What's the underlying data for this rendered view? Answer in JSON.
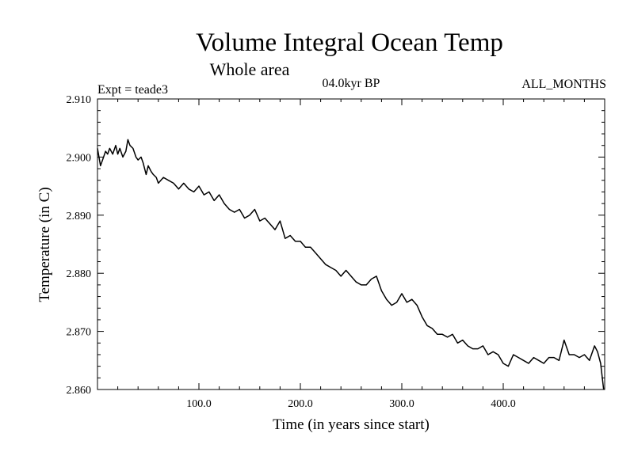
{
  "chart_data": {
    "type": "line",
    "title": "Volume Integral Ocean Temp",
    "subtitle": "Whole area",
    "experiment": "Expt = teade3",
    "period": "04.0kyr BP",
    "months": "ALL_MONTHS",
    "xlabel": "Time (in years since start)",
    "ylabel": "Temperature (in C)",
    "xlim": [
      0,
      500
    ],
    "ylim": [
      2.86,
      2.91
    ],
    "xticks": [
      100,
      200,
      300,
      400
    ],
    "xtick_labels": [
      "100.0",
      "200.0",
      "300.0",
      "400.0"
    ],
    "yticks": [
      2.86,
      2.87,
      2.88,
      2.89,
      2.9,
      2.91
    ],
    "ytick_labels": [
      "2.860",
      "2.870",
      "2.880",
      "2.890",
      "2.900",
      "2.910"
    ],
    "series": [
      {
        "name": "Volume Integral Ocean Temp",
        "color": "#000000",
        "x": [
          0,
          3,
          5,
          8,
          10,
          12,
          15,
          18,
          20,
          22,
          25,
          28,
          30,
          32,
          35,
          38,
          40,
          43,
          45,
          48,
          50,
          53,
          55,
          58,
          60,
          65,
          70,
          75,
          80,
          85,
          90,
          95,
          100,
          105,
          110,
          115,
          120,
          125,
          130,
          135,
          140,
          145,
          150,
          155,
          160,
          165,
          170,
          175,
          180,
          185,
          190,
          195,
          200,
          205,
          210,
          215,
          220,
          225,
          230,
          235,
          240,
          245,
          250,
          255,
          260,
          265,
          270,
          275,
          280,
          285,
          290,
          295,
          300,
          305,
          310,
          315,
          320,
          325,
          330,
          335,
          340,
          345,
          350,
          355,
          360,
          365,
          370,
          375,
          380,
          385,
          390,
          395,
          400,
          405,
          410,
          415,
          420,
          425,
          430,
          435,
          440,
          445,
          450,
          455,
          460,
          465,
          470,
          475,
          480,
          485,
          490,
          493,
          496,
          499
        ],
        "values": [
          2.9015,
          2.8985,
          2.8995,
          2.901,
          2.9005,
          2.9015,
          2.9005,
          2.902,
          2.9005,
          2.9015,
          2.9,
          2.901,
          2.903,
          2.902,
          2.9015,
          2.9,
          2.8995,
          2.9,
          2.899,
          2.897,
          2.8985,
          2.8975,
          2.897,
          2.8965,
          2.8955,
          2.8965,
          2.896,
          2.8955,
          2.8945,
          2.8955,
          2.8945,
          2.894,
          2.895,
          2.8935,
          2.894,
          2.8925,
          2.8935,
          2.892,
          2.891,
          2.8905,
          2.891,
          2.8895,
          2.89,
          2.891,
          2.889,
          2.8895,
          2.8885,
          2.8875,
          2.889,
          2.886,
          2.8865,
          2.8855,
          2.8855,
          2.8845,
          2.8845,
          2.8835,
          2.8825,
          2.8815,
          2.881,
          2.8805,
          2.8795,
          2.8805,
          2.8795,
          2.8785,
          2.878,
          2.878,
          2.879,
          2.8795,
          2.877,
          2.8755,
          2.8745,
          2.875,
          2.8765,
          2.875,
          2.8755,
          2.8745,
          2.8725,
          2.871,
          2.8705,
          2.8695,
          2.8695,
          2.869,
          2.8695,
          2.868,
          2.8685,
          2.8675,
          2.867,
          2.867,
          2.8675,
          2.866,
          2.8665,
          2.866,
          2.8645,
          2.864,
          2.866,
          2.8655,
          2.865,
          2.8645,
          2.8655,
          2.865,
          2.8645,
          2.8655,
          2.8655,
          2.865,
          2.8685,
          2.866,
          2.866,
          2.8655,
          2.866,
          2.865,
          2.8675,
          2.8665,
          2.8645,
          2.86
        ]
      }
    ]
  }
}
